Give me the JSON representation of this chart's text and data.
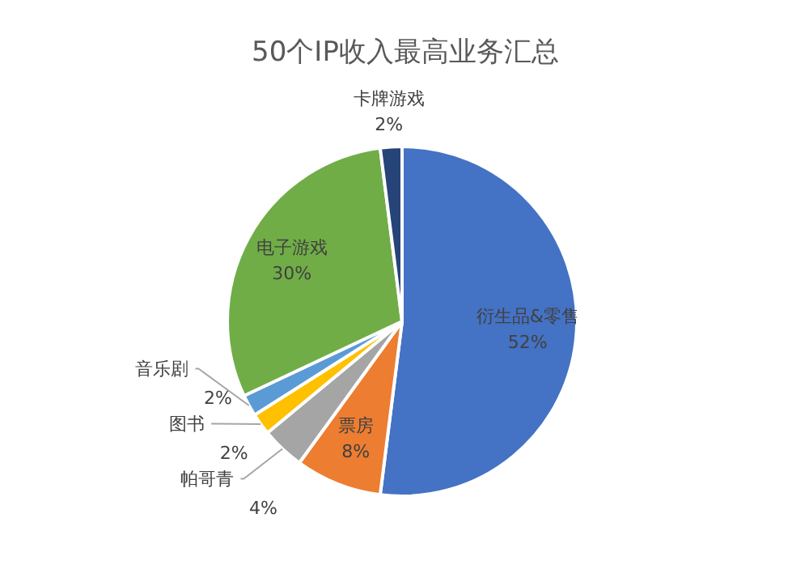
{
  "chart_data": {
    "type": "pie",
    "title": "50个IP收入最高业务汇总",
    "categories": [
      "衍生品&零售",
      "票房",
      "帕哥青",
      "图书",
      "音乐剧",
      "电子游戏",
      "卡牌游戏"
    ],
    "values": [
      52,
      8,
      4,
      2,
      2,
      30,
      2
    ],
    "value_labels": [
      "52%",
      "8%",
      "4%",
      "2%",
      "2%",
      "30%",
      "2%"
    ],
    "colors": [
      "#4472c4",
      "#ed7d31",
      "#a5a5a5",
      "#ffc000",
      "#5b9bd5",
      "#70ad47",
      "#264478"
    ],
    "legend": false
  }
}
